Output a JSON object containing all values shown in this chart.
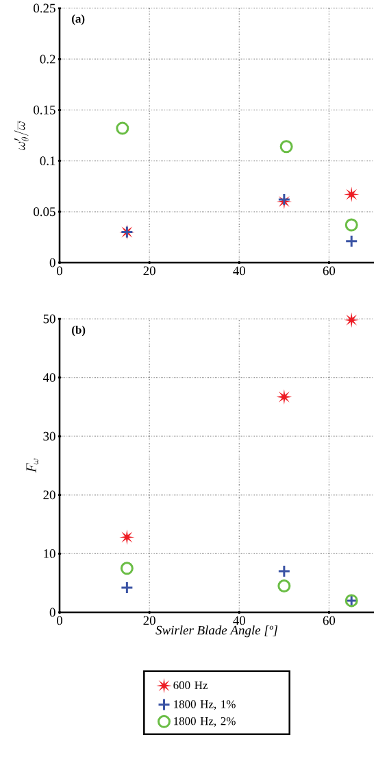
{
  "chart_data": [
    {
      "type": "scatter",
      "ylabel": "\\omega'_\\theta/\\overline{\\omega}",
      "annotations": [
        "(a)"
      ],
      "xlim": [
        0,
        70
      ],
      "ylim": [
        0,
        0.25
      ],
      "xticks": [
        0,
        20,
        40,
        60
      ],
      "yticks": [
        0,
        0.05,
        0.1,
        0.15,
        0.2,
        0.25
      ],
      "grid": true,
      "series": [
        {
          "color": "#ed1c24",
          "marker": "star",
          "x": [
            15,
            50,
            65
          ],
          "values": [
            0.03,
            0.06,
            0.067
          ]
        },
        {
          "color": "#3a53a4",
          "marker": "cross",
          "x": [
            15,
            50,
            65
          ],
          "values": [
            0.03,
            0.062,
            0.021
          ]
        },
        {
          "color": "#6abd45",
          "marker": "circle",
          "x": [
            14,
            50.5,
            65
          ],
          "values": [
            0.132,
            0.114,
            0.037
          ]
        }
      ]
    },
    {
      "type": "scatter",
      "xlabel": "Swirler Blade Angle [º]",
      "ylabel": "F_\\omega",
      "annotations": [
        "(b)"
      ],
      "xlim": [
        0,
        70
      ],
      "ylim": [
        0,
        50
      ],
      "xticks": [
        0,
        20,
        40,
        60
      ],
      "yticks": [
        0,
        10,
        20,
        30,
        40,
        50
      ],
      "grid": true,
      "legend": "bottom",
      "series": [
        {
          "name": "600 Hz",
          "color": "#ed1c24",
          "marker": "star",
          "x": [
            15,
            50,
            65
          ],
          "values": [
            12.8,
            36.7,
            49.8
          ]
        },
        {
          "name": "1800 Hz, 1%",
          "color": "#3a53a4",
          "marker": "cross",
          "x": [
            15,
            50,
            65
          ],
          "values": [
            4.2,
            7,
            2
          ]
        },
        {
          "name": "1800 Hz, 2%",
          "color": "#6abd45",
          "marker": "circle",
          "x": [
            15,
            50,
            65
          ],
          "values": [
            7.5,
            4.5,
            2
          ]
        }
      ]
    }
  ]
}
